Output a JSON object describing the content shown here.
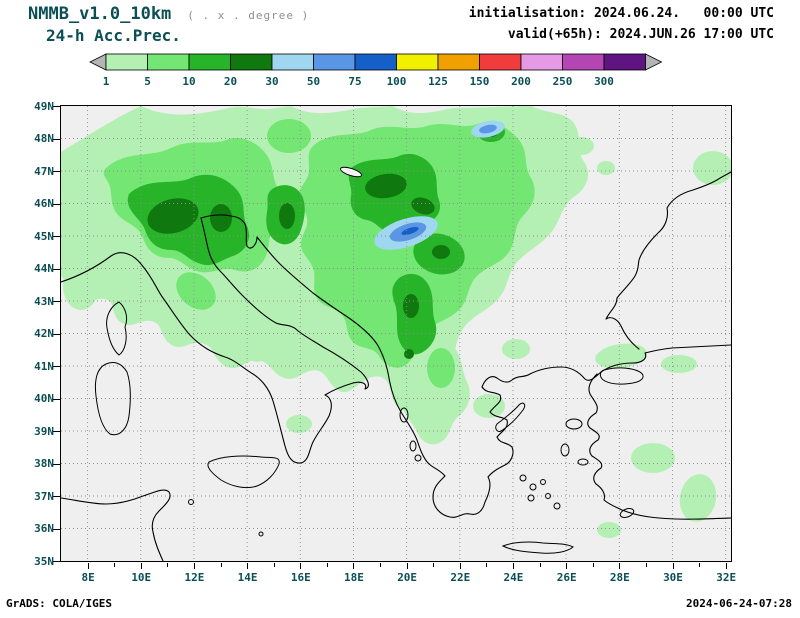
{
  "header": {
    "model": "NMMB_v1.0_10km",
    "resolution_note": "( . x . degree )",
    "product": "24-h Acc.Prec.",
    "init_label": "initialisation:",
    "init_value": "2024.06.24.   00:00 UTC",
    "valid_label": "valid(+65h):",
    "valid_value": "2024.JUN.26 17:00 UTC"
  },
  "footer": {
    "left": "GrADS: COLA/IGES",
    "right": "2024-06-24-07:28"
  },
  "colors": {
    "annotation_teal": "#0b4f55",
    "header_black": "#000000",
    "map_background": "#efefef",
    "grid_dots": "#8f8f8f",
    "coastline": "#000000"
  },
  "chart_data": {
    "type": "map",
    "title": "24-h Acc.Prec.",
    "model": "NMMB_v1.0_10km",
    "initialisation": "2024.06.24. 00:00 UTC",
    "valid": "2024.JUN.26 17:00 UTC",
    "lead_time": "+65h",
    "projection": "latlon",
    "lon_range_deg_e": [
      7.0,
      32.2
    ],
    "lat_range_deg_n": [
      35,
      49
    ],
    "lon_tick_labels": [
      "8E",
      "10E",
      "12E",
      "14E",
      "16E",
      "18E",
      "20E",
      "22E",
      "24E",
      "26E",
      "28E",
      "30E",
      "32E"
    ],
    "lat_tick_labels": [
      "49N",
      "48N",
      "47N",
      "46N",
      "45N",
      "44N",
      "43N",
      "42N",
      "41N",
      "40N",
      "39N",
      "38N",
      "37N",
      "36N",
      "35N"
    ],
    "grid": "dotted, 2 deg lon x 1 deg lat",
    "colorbar": {
      "levels": [
        1,
        5,
        10,
        20,
        30,
        50,
        75,
        100,
        125,
        150,
        200,
        250,
        300
      ],
      "colors": [
        "#b4f0b4",
        "#73e673",
        "#28b428",
        "#0f780f",
        "#a0d7f0",
        "#5a96e6",
        "#1460c8",
        "#f0f000",
        "#f0a000",
        "#f03c3c",
        "#e69ae6",
        "#b446b4",
        "#5f1482"
      ],
      "arrow_color": "#b4b4b4"
    },
    "shading_summary": "Widespread 1-20 mm accumulated precipitation over the Alps, northern Italy, Pannonian basin and the Balkans; scattered 1-5 mm patches over Greece, the Aegean and western Turkey; dry (grey) over most of southern Italy, Bulgaria and the seas.",
    "precip_maxima": [
      {
        "lon_e": 20.0,
        "lat_n": 45.1,
        "value_range_mm": "30-75"
      },
      {
        "lon_e": 22.7,
        "lat_n": 48.3,
        "value_range_mm": "30-50"
      }
    ]
  }
}
